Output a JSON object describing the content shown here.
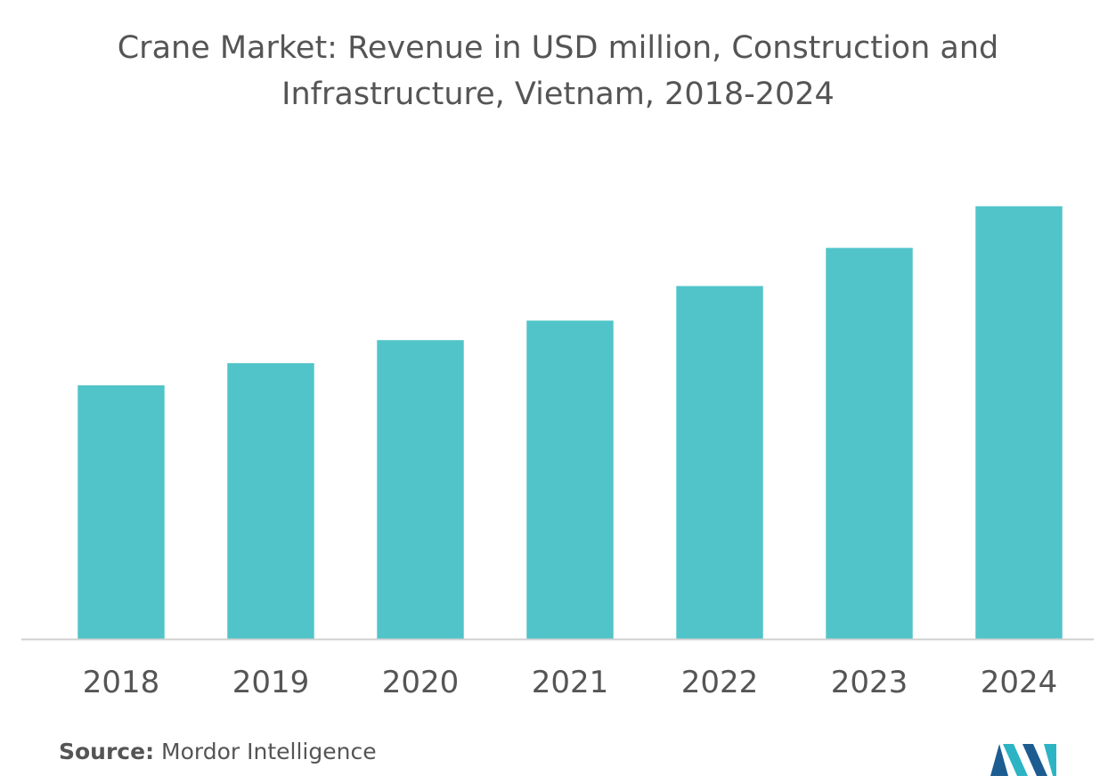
{
  "chart_data": {
    "type": "bar",
    "title": "Crane Market: Revenue in USD million, Construction and Infrastructure, Vietnam, 2018-2024",
    "categories": [
      "2018",
      "2019",
      "2020",
      "2021",
      "2022",
      "2023",
      "2024"
    ],
    "values": [
      286,
      311,
      337,
      359,
      398,
      441,
      488
    ],
    "ylim": [
      0,
      560
    ],
    "xlabel": "",
    "ylabel": "",
    "grid": false,
    "legend": "none",
    "bar_color": "#51c4c9",
    "axis_color": "#d0d0d0",
    "tick_color": "#555555"
  },
  "source": {
    "label": "Source:",
    "text": "Mordor Intelligence"
  },
  "logo": {
    "name": "mordor-intelligence-logo",
    "colors": [
      "#1c5c91",
      "#2cb4c4"
    ]
  }
}
